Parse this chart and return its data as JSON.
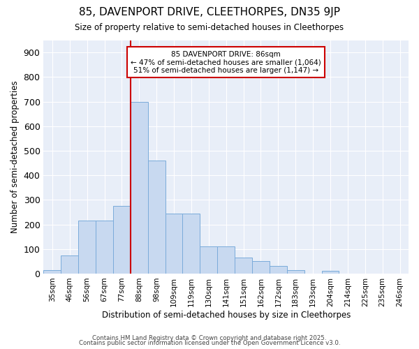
{
  "title": "85, DAVENPORT DRIVE, CLEETHORPES, DN35 9JP",
  "subtitle": "Size of property relative to semi-detached houses in Cleethorpes",
  "xlabel": "Distribution of semi-detached houses by size in Cleethorpes",
  "ylabel": "Number of semi-detached properties",
  "bar_labels": [
    "35sqm",
    "46sqm",
    "56sqm",
    "67sqm",
    "77sqm",
    "88sqm",
    "98sqm",
    "109sqm",
    "119sqm",
    "130sqm",
    "141sqm",
    "151sqm",
    "162sqm",
    "172sqm",
    "183sqm",
    "193sqm",
    "204sqm",
    "214sqm",
    "225sqm",
    "235sqm",
    "246sqm"
  ],
  "bar_values": [
    15,
    75,
    215,
    215,
    275,
    700,
    460,
    245,
    245,
    110,
    110,
    65,
    52,
    30,
    15,
    0,
    10,
    0,
    0,
    0,
    0
  ],
  "bar_color": "#c8d9f0",
  "bar_edge_color": "#7aabda",
  "vline_color": "#cc0000",
  "annotation_title": "85 DAVENPORT DRIVE: 86sqm",
  "annotation_line1": "← 47% of semi-detached houses are smaller (1,064)",
  "annotation_line2": "51% of semi-detached houses are larger (1,147) →",
  "annotation_box_color": "#ffffff",
  "annotation_box_edge_color": "#cc0000",
  "ylim": [
    0,
    950
  ],
  "yticks": [
    0,
    100,
    200,
    300,
    400,
    500,
    600,
    700,
    800,
    900
  ],
  "bg_color": "#e8eef8",
  "grid_color": "#ffffff",
  "footer1": "Contains HM Land Registry data © Crown copyright and database right 2025.",
  "footer2": "Contains public sector information licensed under the Open Government Licence v3.0."
}
